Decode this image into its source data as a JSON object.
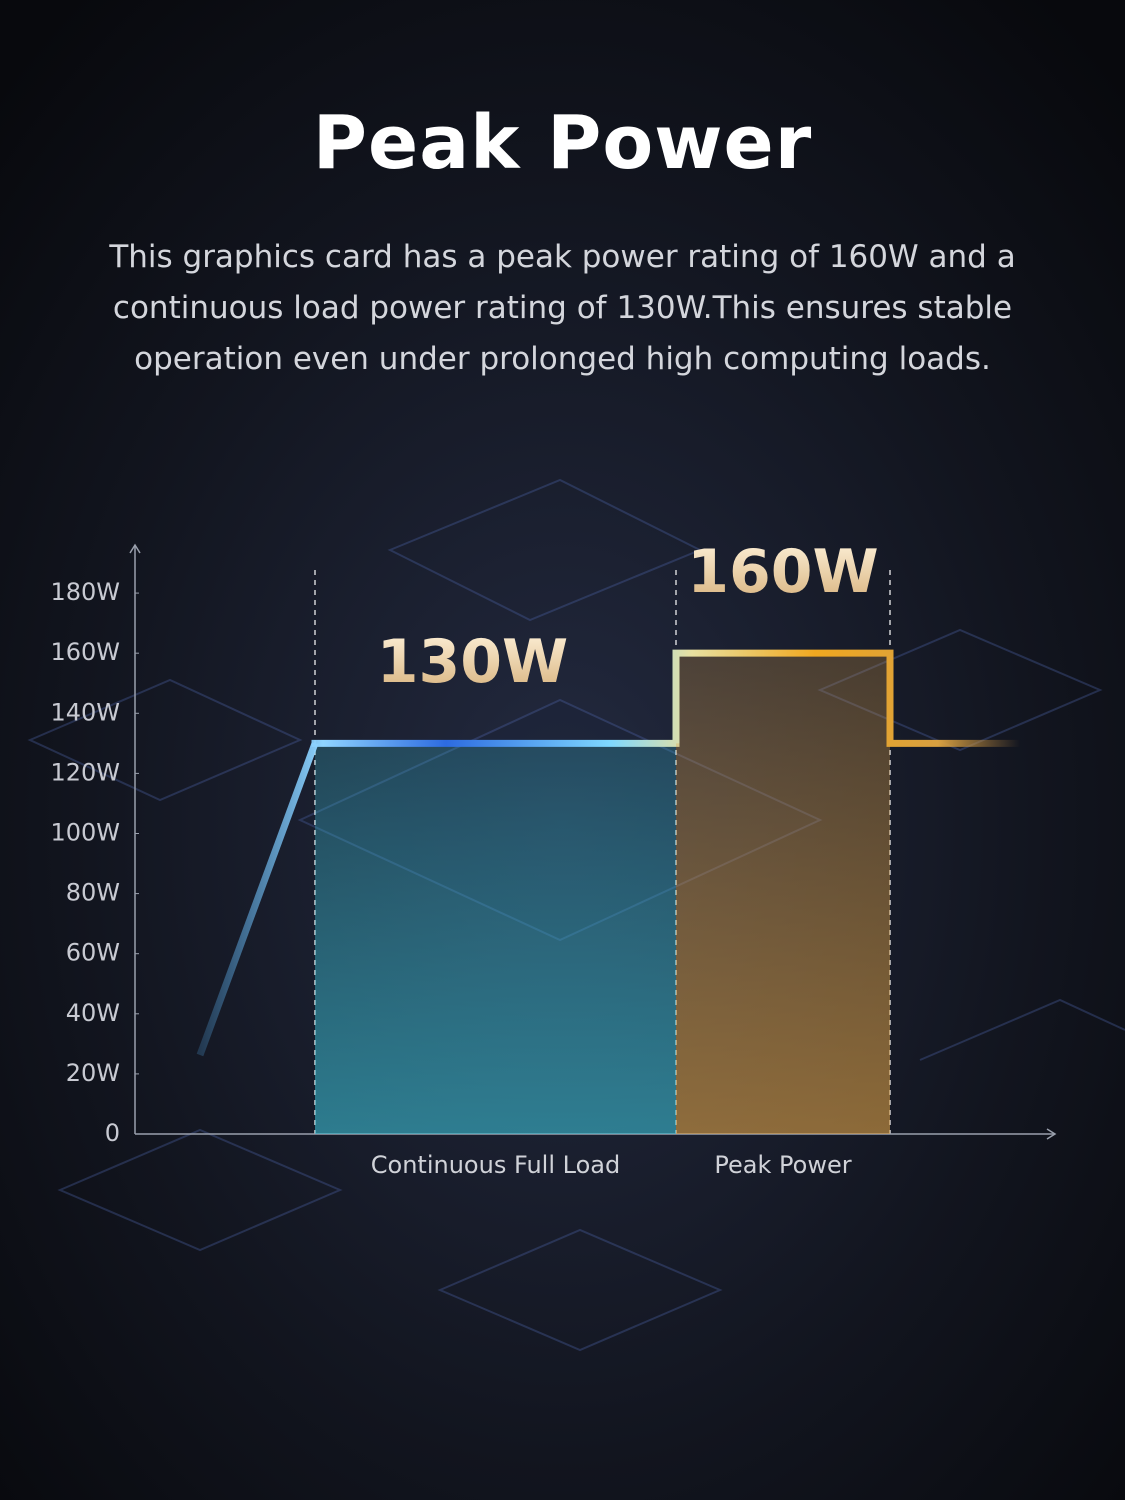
{
  "chart_data": {
    "type": "bar",
    "title": "Peak Power",
    "subtitle": "This graphics card has a peak power rating of 160W and a continuous load power rating of 130W.This ensures stable operation even under prolonged high computing loads.",
    "categories": [
      "Continuous Full Load",
      "Peak Power"
    ],
    "values": [
      130,
      160
    ],
    "value_labels": [
      "130W",
      "160W"
    ],
    "colors": [
      "#3cbcd2",
      "#dca046"
    ],
    "ylim": [
      0,
      196
    ],
    "yticks": [
      0,
      {
        "value": 20,
        "label": "20W"
      },
      {
        "value": 40,
        "label": "40W"
      },
      {
        "value": 60,
        "label": "60W"
      },
      {
        "value": 80,
        "label": "80W"
      },
      {
        "value": 100,
        "label": "100W"
      },
      {
        "value": 120,
        "label": "120W"
      },
      {
        "value": 140,
        "label": "140W"
      },
      {
        "value": 160,
        "label": "160W"
      },
      {
        "value": 180,
        "label": "180W"
      }
    ],
    "grid": false
  }
}
